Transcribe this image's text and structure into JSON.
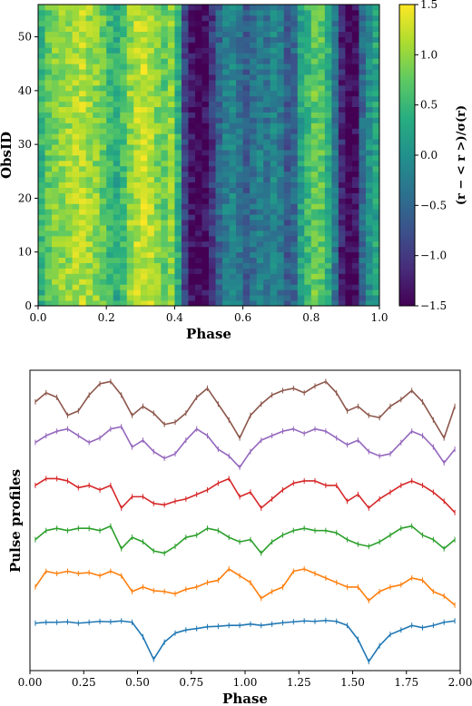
{
  "chart_data": [
    {
      "type": "heatmap",
      "xlabel": "Phase",
      "ylabel": "ObsID",
      "xlim": [
        0.0,
        1.0
      ],
      "ylim": [
        0,
        56
      ],
      "x_ticks": [
        "0.0",
        "0.2",
        "0.4",
        "0.6",
        "0.8",
        "1.0"
      ],
      "y_ticks": [
        "0",
        "10",
        "20",
        "30",
        "40",
        "50"
      ],
      "n_phase_bins": 50,
      "n_obs": 56,
      "colormap": "viridis",
      "colorbar": {
        "label": "(r − < r >)/σ(r)",
        "range": [
          -1.5,
          1.5
        ],
        "ticks": [
          "−1.5",
          "−1.0",
          "−0.5",
          "0.0",
          "0.5",
          "1.0",
          "1.5"
        ]
      },
      "mean_profile": [
        0.45,
        0.75,
        0.9,
        1.0,
        1.05,
        1.1,
        1.15,
        1.05,
        0.95,
        0.75,
        0.5,
        0.35,
        0.6,
        1.0,
        1.2,
        1.25,
        1.15,
        0.9,
        0.75,
        0.95,
        0.4,
        -0.9,
        -1.35,
        -1.5,
        -1.4,
        -1.0,
        -0.55,
        -0.25,
        -0.15,
        -0.35,
        -0.6,
        -0.4,
        -0.2,
        -0.35,
        -0.15,
        -0.3,
        -0.65,
        -0.5,
        0.2,
        0.5,
        0.75,
        0.7,
        0.35,
        -0.35,
        -1.2,
        -1.5,
        -1.4,
        -0.5,
        0.0,
        0.25
      ]
    },
    {
      "type": "line",
      "xlabel": "Phase",
      "ylabel": "Pulse profiles",
      "xlim": [
        0.0,
        2.0
      ],
      "x_ticks": [
        "0.00",
        "0.25",
        "0.50",
        "0.75",
        "1.00",
        "1.25",
        "1.50",
        "1.75",
        "2.00"
      ],
      "y_ticks_shown": false,
      "phase": [
        0.025,
        0.075,
        0.125,
        0.175,
        0.225,
        0.275,
        0.325,
        0.375,
        0.425,
        0.475,
        0.525,
        0.575,
        0.625,
        0.675,
        0.725,
        0.775,
        0.825,
        0.875,
        0.925,
        0.975
      ],
      "series": [
        {
          "color": "#1f77b4",
          "offset": 0,
          "values": [
            0.0,
            0.02,
            0.02,
            0.03,
            0.0,
            0.02,
            0.04,
            0.03,
            0.05,
            0.02,
            -0.3,
            -0.8,
            -0.42,
            -0.22,
            -0.15,
            -0.12,
            -0.08,
            -0.07,
            -0.05,
            -0.05,
            -0.02,
            -0.05,
            -0.02,
            0.01,
            0.03,
            0.05,
            0.04,
            0.06,
            0.04,
            -0.05,
            -0.36,
            -0.85,
            -0.5,
            -0.25,
            -0.15,
            -0.05,
            -0.1,
            -0.05,
            0.02,
            0.05
          ]
        },
        {
          "color": "#ff7f0e",
          "offset": 1,
          "values": [
            -0.2,
            0.15,
            0.1,
            0.15,
            0.1,
            0.12,
            0.05,
            0.15,
            0.05,
            -0.3,
            -0.2,
            -0.28,
            -0.3,
            -0.35,
            -0.25,
            -0.2,
            -0.1,
            -0.05,
            0.2,
            0.05,
            -0.1,
            -0.45,
            -0.3,
            -0.2,
            0.15,
            0.2,
            0.1,
            0.0,
            -0.1,
            -0.2,
            -0.2,
            -0.5,
            -0.3,
            -0.2,
            -0.15,
            0.0,
            -0.05,
            -0.3,
            -0.4,
            -0.6
          ]
        },
        {
          "color": "#2ca02c",
          "offset": 2,
          "values": [
            -0.15,
            0.05,
            0.1,
            0.05,
            0.1,
            0.1,
            0.05,
            0.15,
            -0.35,
            -0.1,
            -0.2,
            -0.4,
            -0.45,
            -0.3,
            -0.1,
            -0.05,
            0.1,
            0.05,
            -0.1,
            -0.2,
            -0.15,
            -0.45,
            -0.2,
            -0.05,
            0.05,
            0.1,
            0.05,
            0.05,
            0.0,
            -0.15,
            -0.25,
            -0.3,
            -0.2,
            -0.05,
            0.1,
            0.15,
            -0.05,
            -0.15,
            -0.35,
            -0.15
          ]
        },
        {
          "color": "#d62728",
          "offset": 3,
          "values": [
            0.05,
            0.2,
            0.2,
            0.15,
            0.0,
            0.05,
            -0.05,
            0.05,
            -0.45,
            -0.2,
            -0.2,
            -0.35,
            -0.38,
            -0.3,
            -0.25,
            -0.15,
            -0.05,
            0.1,
            0.2,
            -0.2,
            -0.1,
            -0.45,
            -0.25,
            -0.05,
            0.1,
            0.15,
            0.15,
            0.05,
            0.05,
            -0.3,
            -0.15,
            -0.45,
            -0.25,
            -0.1,
            0.05,
            0.15,
            0.05,
            -0.1,
            -0.3,
            -0.55
          ]
        },
        {
          "color": "#9467bd",
          "offset": 4,
          "values": [
            0.0,
            0.15,
            0.25,
            0.3,
            0.15,
            0.0,
            0.1,
            0.3,
            0.35,
            -0.1,
            0.05,
            -0.2,
            -0.35,
            -0.25,
            0.05,
            0.3,
            0.15,
            -0.15,
            -0.3,
            -0.55,
            -0.2,
            0.05,
            0.15,
            0.25,
            0.3,
            0.2,
            0.3,
            0.25,
            0.1,
            -0.05,
            0.05,
            -0.2,
            -0.3,
            -0.25,
            0.0,
            0.25,
            0.15,
            -0.1,
            -0.45,
            -0.15
          ]
        },
        {
          "color": "#8c564b",
          "offset": 5,
          "values": [
            -0.1,
            0.1,
            0.0,
            -0.4,
            -0.3,
            0.05,
            0.3,
            0.35,
            0.05,
            -0.4,
            -0.2,
            -0.35,
            -0.6,
            -0.55,
            -0.35,
            0.0,
            0.2,
            -0.15,
            -0.5,
            -0.9,
            -0.4,
            -0.15,
            0.05,
            0.15,
            0.2,
            0.1,
            0.25,
            0.35,
            0.1,
            -0.3,
            -0.2,
            -0.4,
            -0.45,
            -0.2,
            -0.05,
            0.15,
            -0.1,
            -0.5,
            -0.9,
            -0.2
          ]
        }
      ]
    }
  ]
}
